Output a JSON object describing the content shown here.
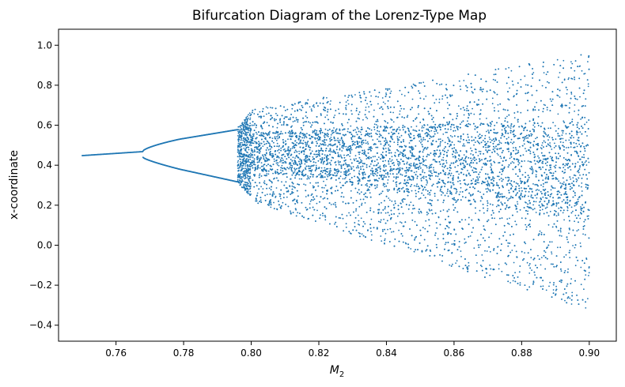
{
  "chart_data": {
    "type": "scatter",
    "title": "Bifurcation Diagram of the Lorenz-Type Map",
    "xlabel_base": "M",
    "xlabel_sub": "2",
    "ylabel": "x-coordinate",
    "xlim": [
      0.743,
      0.908
    ],
    "ylim": [
      -0.48,
      1.08
    ],
    "x_ticks": [
      0.76,
      0.78,
      0.8,
      0.82,
      0.84,
      0.86,
      0.88,
      0.9
    ],
    "x_tick_labels": [
      "0.76",
      "0.78",
      "0.80",
      "0.82",
      "0.84",
      "0.86",
      "0.88",
      "0.90"
    ],
    "y_ticks": [
      -0.4,
      -0.2,
      0.0,
      0.2,
      0.4,
      0.6,
      0.8,
      1.0
    ],
    "y_tick_labels": [
      "−0.4",
      "−0.2",
      "0.0",
      "0.2",
      "0.4",
      "0.6",
      "0.8",
      "1.0"
    ],
    "grid": false,
    "series": [
      {
        "color": "#1f77b4",
        "x_range": [
          0.75,
          0.9
        ],
        "regimes": [
          {
            "x_from": 0.75,
            "x_to": 0.768,
            "kind": "fixed_point",
            "y_start": 0.448,
            "y_end": 0.468
          },
          {
            "x_from": 0.768,
            "x_to": 0.796,
            "kind": "period_2",
            "upper": [
              0.47,
              0.59
            ],
            "lower": [
              0.44,
              0.31
            ]
          },
          {
            "x_from": 0.796,
            "x_to": 0.8,
            "kind": "onset_of_chaos",
            "y_range": [
              0.26,
              0.66
            ]
          },
          {
            "x_from": 0.8,
            "x_to": 0.9,
            "kind": "chaotic",
            "y_min_at_end": -0.42,
            "y_max_at_end": 1.02
          }
        ]
      }
    ]
  }
}
